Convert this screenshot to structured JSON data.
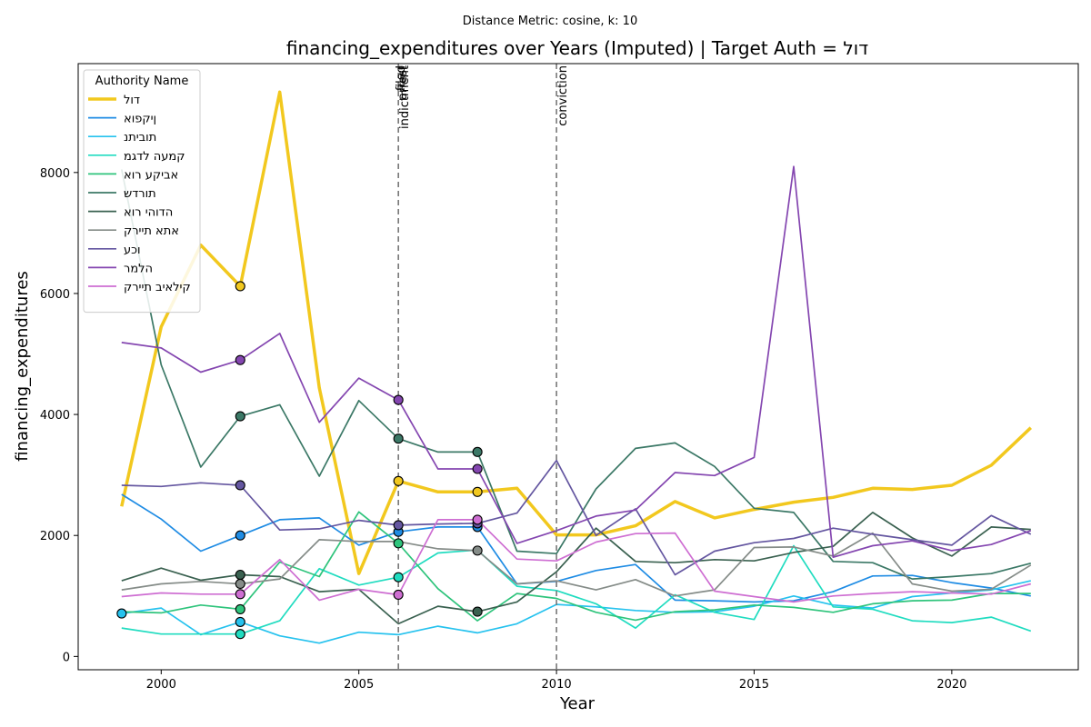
{
  "suptitle": "Distance Metric: cosine, k: 10",
  "chart_data": {
    "type": "line",
    "title": "financing_expenditures over Years (Imputed) | Target Auth = דול",
    "xlabel": "Year",
    "ylabel": "financing_expenditures",
    "xlim": [
      1997.9,
      2023.2
    ],
    "ylim": [
      -220,
      9800
    ],
    "xticks": [
      2000,
      2005,
      2010,
      2015,
      2020
    ],
    "yticks": [
      0,
      2000,
      4000,
      6000,
      8000
    ],
    "grid": false,
    "legend_title": "Authority Name",
    "legend_position": "top-left",
    "events": [
      {
        "label": "indictment",
        "x": 2006
      },
      {
        "label": "arrest",
        "x": 2006
      },
      {
        "label": "filed",
        "x": 2006
      },
      {
        "label": "conviction",
        "x": 2010
      }
    ],
    "x": [
      1999,
      2000,
      2001,
      2002,
      2003,
      2004,
      2005,
      2006,
      2007,
      2008,
      2009,
      2010,
      2011,
      2012,
      2013,
      2014,
      2015,
      2016,
      2017,
      2018,
      2019,
      2020,
      2021,
      2022
    ],
    "marker_years": [
      2002,
      2006,
      2008
    ],
    "series": [
      {
        "name": "דול",
        "color": "#f2c81e",
        "target": true,
        "values": [
          2480,
          5450,
          6800,
          6120,
          9330,
          4440,
          1370,
          2900,
          2720,
          2720,
          2780,
          2010,
          2010,
          2160,
          2560,
          2290,
          2430,
          2550,
          2630,
          2780,
          2760,
          2830,
          3160,
          3780
        ],
        "markers": [
          2002,
          2006,
          2008
        ]
      },
      {
        "name": "ןיקפוא",
        "color": "#1f8ce4",
        "values": [
          2680,
          2270,
          1740,
          2000,
          2260,
          2290,
          1840,
          2060,
          2140,
          2140,
          1200,
          1240,
          1420,
          1520,
          930,
          920,
          900,
          920,
          1070,
          1330,
          1340,
          1220,
          1130,
          1000
        ],
        "markers": [
          2002,
          2006,
          2008
        ]
      },
      {
        "name": "תוביתנ",
        "color": "#26c2ee",
        "values": [
          710,
          800,
          360,
          570,
          340,
          220,
          400,
          360,
          500,
          390,
          540,
          860,
          820,
          760,
          730,
          740,
          830,
          1000,
          850,
          800,
          990,
          1050,
          1100,
          1250
        ],
        "markers": [
          1999,
          2002
        ]
      },
      {
        "name": "קמעה לדגמ",
        "color": "#20dcc0",
        "values": [
          470,
          370,
          370,
          370,
          590,
          1450,
          1180,
          1310,
          1710,
          1760,
          1160,
          1090,
          870,
          470,
          1020,
          730,
          610,
          1830,
          820,
          780,
          590,
          560,
          650,
          420
        ],
        "markers": [
          2002,
          2006
        ]
      },
      {
        "name": "אביקע רוא",
        "color": "#2fc47c",
        "values": [
          740,
          720,
          850,
          780,
          1560,
          1320,
          2390,
          1870,
          1120,
          590,
          1040,
          960,
          730,
          600,
          740,
          770,
          850,
          810,
          730,
          870,
          920,
          930,
          1040,
          1040
        ],
        "markers": [
          2002,
          2006
        ]
      },
      {
        "name": "תורדש",
        "color": "#3b7866",
        "values": [
          8050,
          4820,
          3130,
          3970,
          4160,
          2980,
          4230,
          3600,
          3380,
          3380,
          1740,
          1700,
          2770,
          3440,
          3530,
          3140,
          2450,
          2380,
          1570,
          1550,
          1280,
          1320,
          1370,
          1540
        ],
        "markers": [
          2002,
          2006,
          2008
        ]
      },
      {
        "name": "הדוהי רוא",
        "color": "#3a6150",
        "values": [
          1250,
          1460,
          1260,
          1350,
          1320,
          1070,
          1110,
          540,
          830,
          740,
          900,
          1400,
          2120,
          1570,
          1550,
          1600,
          1580,
          1720,
          1820,
          2380,
          1960,
          1660,
          2140,
          2100
        ],
        "markers": [
          2002,
          2008
        ]
      },
      {
        "name": "אתא תיירק",
        "color": "#858c88",
        "values": [
          1100,
          1200,
          1240,
          1200,
          1280,
          1930,
          1900,
          1900,
          1780,
          1750,
          1200,
          1250,
          1100,
          1270,
          1000,
          1100,
          1800,
          1810,
          1660,
          2040,
          1200,
          1080,
          1110,
          1510
        ],
        "markers": [
          2002,
          2008
        ]
      },
      {
        "name": "וכע",
        "color": "#6456a0",
        "values": [
          2830,
          2810,
          2870,
          2830,
          2090,
          2110,
          2250,
          2170,
          2190,
          2200,
          2370,
          3240,
          2000,
          2440,
          1350,
          1740,
          1880,
          1950,
          2120,
          2020,
          1930,
          1840,
          2330,
          2020
        ],
        "markers": [
          2002,
          2006,
          2008
        ]
      },
      {
        "name": "הלמר",
        "color": "#8446b0",
        "values": [
          5190,
          5100,
          4700,
          4900,
          5340,
          3870,
          4600,
          4240,
          3100,
          3100,
          1870,
          2080,
          2320,
          2420,
          3040,
          2990,
          3290,
          8100,
          1640,
          1830,
          1910,
          1750,
          1850,
          2080
        ],
        "markers": [
          2002,
          2006,
          2008
        ]
      },
      {
        "name": "קילאיב תיירק",
        "color": "#ce6ed2",
        "values": [
          990,
          1050,
          1030,
          1030,
          1600,
          930,
          1110,
          1020,
          2260,
          2260,
          1610,
          1580,
          1890,
          2030,
          2040,
          1080,
          990,
          900,
          1000,
          1040,
          1070,
          1050,
          1030,
          1200
        ],
        "markers": [
          2002,
          2006,
          2008
        ]
      }
    ]
  }
}
